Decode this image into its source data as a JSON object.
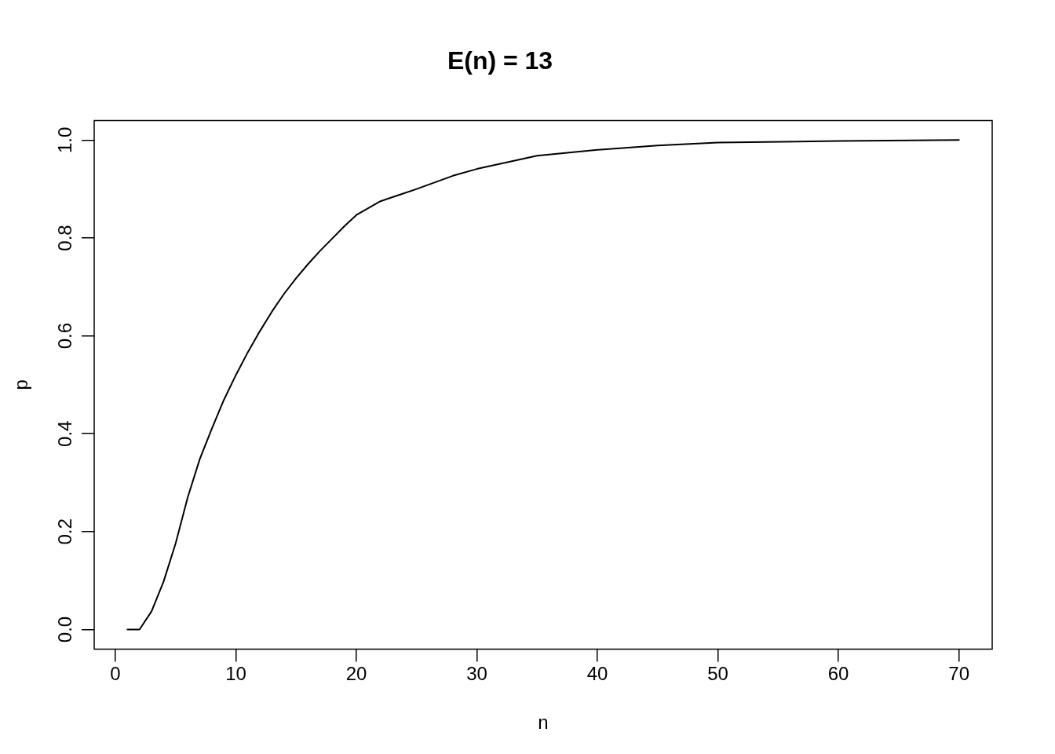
{
  "chart_data": {
    "type": "line",
    "title": "E(n) = 13",
    "xlabel": "n",
    "ylabel": "p",
    "series": [
      {
        "color": "#000000",
        "x": [
          1,
          2,
          3,
          4,
          5,
          6,
          7,
          8,
          9,
          10,
          11,
          12,
          13,
          14,
          15,
          16,
          17,
          18,
          19,
          20,
          22,
          25,
          28,
          30,
          35,
          40,
          45,
          50,
          60,
          70
        ],
        "values": [
          0,
          0,
          0.037,
          0.098,
          0.176,
          0.27,
          0.348,
          0.41,
          0.469,
          0.52,
          0.567,
          0.61,
          0.65,
          0.686,
          0.718,
          0.747,
          0.774,
          0.799,
          0.824,
          0.847,
          0.875,
          0.9,
          0.927,
          0.941,
          0.968,
          0.98,
          0.989,
          0.995,
          0.998,
          1.0
        ]
      }
    ],
    "xlim": [
      -1.76,
      72.76
    ],
    "ylim": [
      -0.04,
      1.04
    ],
    "xticks": [
      0,
      10,
      20,
      30,
      40,
      50,
      60,
      70
    ],
    "yticks": [
      {
        "value": 0,
        "label": "0.0"
      },
      {
        "value": 0.2,
        "label": "0.2"
      },
      {
        "value": 0.4,
        "label": "0.4"
      },
      {
        "value": 0.6,
        "label": "0.6"
      },
      {
        "value": 0.8,
        "label": "0.8"
      },
      {
        "value": 1,
        "label": "1.0"
      }
    ],
    "grid": false,
    "legend": false,
    "marker": "none",
    "line_style": "solid"
  }
}
